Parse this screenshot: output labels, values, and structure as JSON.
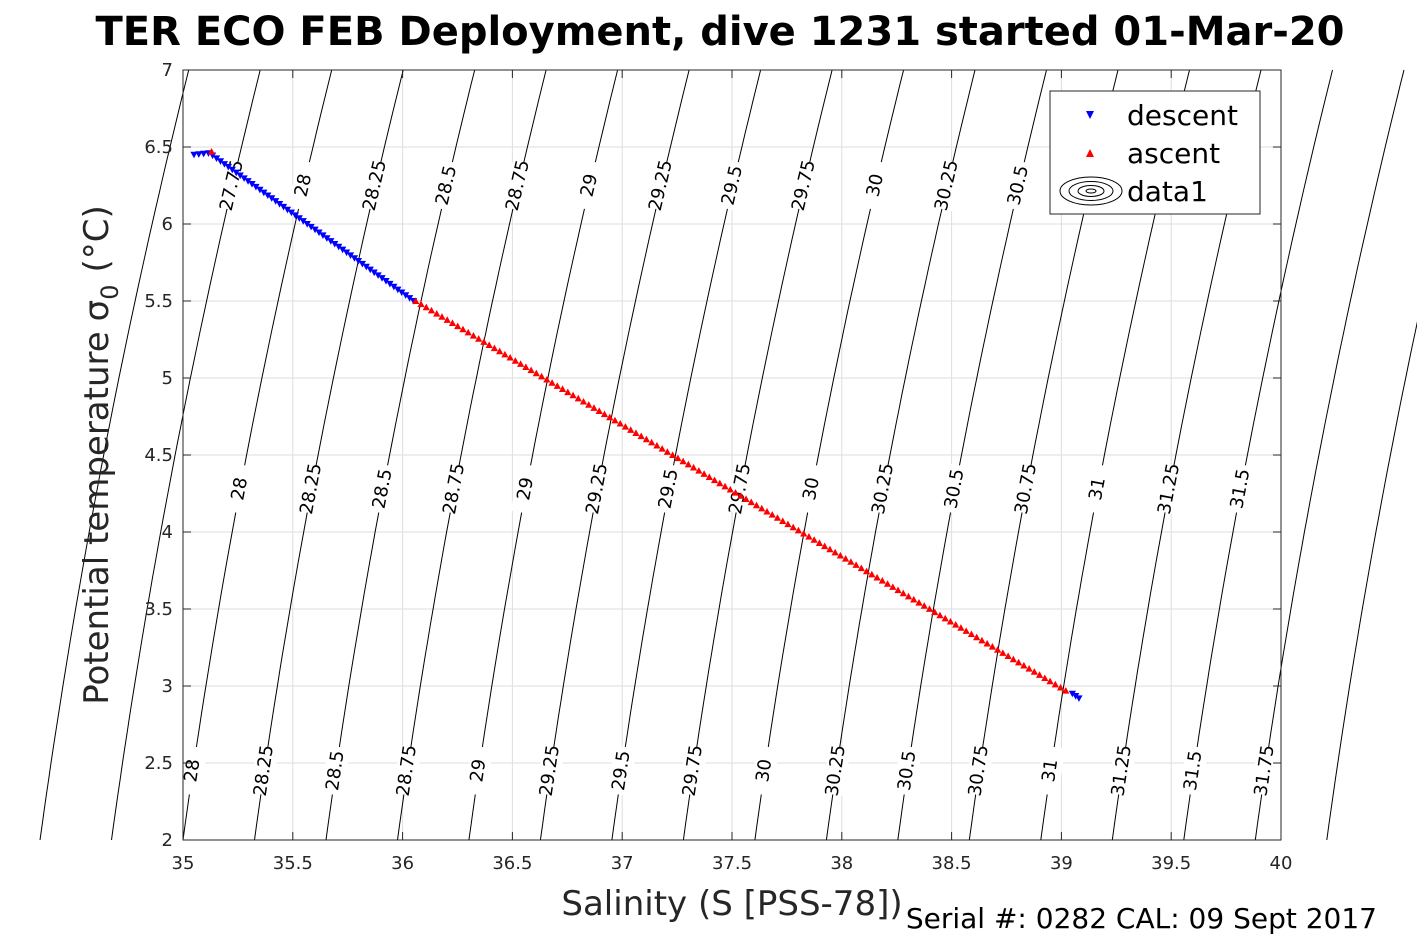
{
  "chart_data": {
    "type": "scatter",
    "title": "TER ECO FEB Deployment, dive 1231 started 01-Mar-20",
    "xlabel": "Salinity (S [PSS-78])",
    "ylabel": "Potential temperature",
    "ylabel_symbol": "σ",
    "ylabel_subscript": "0",
    "ylabel_unit": "(°C)",
    "xlim": [
      35,
      40
    ],
    "ylim": [
      2,
      7
    ],
    "xticks": [
      35,
      35.5,
      36,
      36.5,
      37,
      37.5,
      38,
      38.5,
      39,
      39.5,
      40
    ],
    "yticks": [
      2,
      2.5,
      3,
      3.5,
      4,
      4.5,
      5,
      5.5,
      6,
      6.5,
      7
    ],
    "grid": true,
    "legend_position": "top-right",
    "legend": [
      "descent",
      "ascent",
      "data1"
    ],
    "series": [
      {
        "name": "descent",
        "marker": "triangle-down",
        "color": "#0000ff",
        "points": [
          [
            35.05,
            6.45
          ],
          [
            35.12,
            6.46
          ],
          [
            36.05,
            5.5
          ],
          [
            39.05,
            2.95
          ],
          [
            39.08,
            2.92
          ]
        ]
      },
      {
        "name": "ascent",
        "marker": "triangle-up",
        "color": "#ff0000",
        "points": [
          [
            35.13,
            6.47
          ],
          [
            36.06,
            5.5
          ],
          [
            39.02,
            2.97
          ]
        ]
      }
    ],
    "contours": {
      "name": "data1",
      "color": "#000000",
      "levels": [
        27.75,
        28,
        28.25,
        28.5,
        28.75,
        29,
        29.25,
        29.5,
        29.75,
        30,
        30.25,
        30.5,
        30.75,
        31,
        31.25,
        31.5,
        31.75
      ],
      "labels_top": [
        "27.75",
        "28",
        "28.25",
        "28.5",
        "28.75",
        "29",
        "29.25",
        "29.5",
        "29.75",
        "30",
        "30.25",
        "30.5"
      ],
      "labels_middle": [
        "28",
        "28.25",
        "28.5",
        "28.75",
        "29",
        "29.25",
        "29.5",
        "29.75",
        "30",
        "30.25",
        "30.5",
        "30.75",
        "31",
        "31.25",
        "31.5"
      ],
      "labels_bottom": [
        "28",
        "28.25",
        "28.5",
        "28.75",
        "29",
        "29.25",
        "29.5",
        "29.75",
        "30",
        "30.25",
        "30.5",
        "30.75",
        "31",
        "31.25",
        "31.5",
        "31.75"
      ]
    }
  },
  "footer": "Serial #: 0282  CAL: 09 Sept 2017"
}
